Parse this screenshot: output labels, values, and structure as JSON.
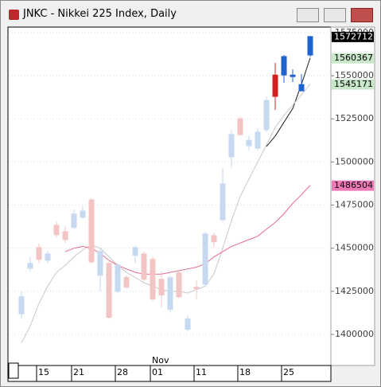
{
  "window_title": "JNKC - Nikkei 225 Index, Daily",
  "chart_data": {
    "type": "candlestick",
    "categories": [
      null,
      null,
      "15",
      null,
      null,
      null,
      "21",
      null,
      null,
      null,
      null,
      "28",
      null,
      null,
      null,
      "01",
      null,
      null,
      null,
      null,
      "11",
      null,
      null,
      null,
      null,
      "18",
      null,
      null,
      null,
      null,
      "25",
      null,
      null,
      null
    ],
    "annotations": [
      {
        "category": "01",
        "text": "Nov"
      }
    ],
    "open": [
      1412000,
      1438400,
      1450400,
      1443000,
      1463300,
      1459600,
      1462000,
      1468000,
      1478000,
      1434300,
      1441200,
      1425000,
      1433000,
      1445800,
      1446700,
      1443500,
      1432000,
      1414500,
      1435700,
      1403000,
      1427400,
      1429200,
      1457300,
      1466600,
      1503000,
      1525100,
      1509400,
      1508000,
      1518700,
      1550400,
      1550400,
      1549500,
      1541200,
      1562000
    ],
    "high": [
      1425000,
      1445000,
      1452700,
      1448500,
      1465200,
      1462900,
      1472500,
      1474400,
      1479000,
      1449500,
      1443500,
      1441200,
      1434300,
      1451800,
      1448100,
      1444900,
      1436600,
      1434300,
      1436600,
      1411300,
      1431100,
      1459600,
      1459100,
      1496500,
      1518700,
      1526400,
      1515000,
      1519600,
      1538000,
      1557400,
      1562000,
      1553700,
      1550900,
      1573000
    ],
    "low": [
      1409000,
      1436600,
      1441200,
      1441200,
      1456000,
      1453200,
      1461000,
      1467000,
      1441200,
      1425000,
      1409000,
      1423700,
      1426400,
      1441200,
      1431100,
      1419100,
      1415900,
      1412600,
      1420900,
      1402000,
      1420500,
      1427400,
      1450400,
      1465200,
      1496500,
      1515000,
      1506700,
      1506700,
      1517300,
      1530200,
      1545900,
      1546300,
      1541200,
      1561000
    ],
    "close": [
      1422000,
      1441200,
      1443500,
      1446700,
      1457800,
      1455000,
      1469800,
      1471600,
      1442100,
      1448100,
      1409900,
      1440300,
      1427400,
      1450400,
      1432000,
      1420500,
      1422800,
      1432900,
      1421800,
      1409000,
      1426500,
      1458300,
      1453700,
      1487300,
      1515900,
      1515900,
      1512600,
      1517300,
      1535700,
      1538000,
      1561100,
      1550400,
      1544900,
      1572712
    ],
    "colors": [
      "#c6d9f0",
      "#c6d9f0",
      "#f2c4c4",
      "#c6d9f0",
      "#f2c4c4",
      "#f2c4c4",
      "#c6d9f0",
      "#c6d9f0",
      "#f2c4c4",
      "#c6d9f0",
      "#f2c4c4",
      "#c6d9f0",
      "#f2c4c4",
      "#c6d9f0",
      "#f2c4c4",
      "#f2c4c4",
      "#f2c4c4",
      "#c6d9f0",
      "#f2c4c4",
      "#c6d9f0",
      "#f2c4c4",
      "#c6d9f0",
      "#f2c4c4",
      "#c6d9f0",
      "#c6d9f0",
      "#f2c4c4",
      "#c6d9f0",
      "#c6d9f0",
      "#c6d9f0",
      "#d42020",
      "#1f62d0",
      "#1f62d0",
      "#1f62d0",
      "#1f62d0"
    ],
    "lines": [
      {
        "color": "#202020",
        "values": [
          null,
          null,
          null,
          null,
          null,
          null,
          null,
          null,
          null,
          null,
          null,
          null,
          null,
          null,
          null,
          null,
          null,
          null,
          null,
          null,
          null,
          null,
          null,
          null,
          null,
          null,
          null,
          null,
          1509000,
          1515000,
          1523000,
          1531000,
          1545000,
          1560367
        ]
      },
      {
        "color": "#c8c8c8",
        "values": [
          1395000,
          1405000,
          1418000,
          1428000,
          1436000,
          1440000,
          1445000,
          1449000,
          1452000,
          1450000,
          1445000,
          1440000,
          1436000,
          1433000,
          1430000,
          1428000,
          1426000,
          1425000,
          1425000,
          1424000,
          1426000,
          1428000,
          1435000,
          1450000,
          1466000,
          1480000,
          1490000,
          1500000,
          1510000,
          1520000,
          1527000,
          1533000,
          1539000,
          1545171
        ]
      },
      {
        "color": "#e86a8a",
        "values": [
          null,
          null,
          null,
          null,
          null,
          1448000,
          1450000,
          1451000,
          1450000,
          1447000,
          1443000,
          1440000,
          1438000,
          1436000,
          1435000,
          1435000,
          1435000,
          1436000,
          1437000,
          1438000,
          1439000,
          1441000,
          1445000,
          1448000,
          1451000,
          1453000,
          1455000,
          1457000,
          1461000,
          1465000,
          1470000,
          1476000,
          1481000,
          1486504
        ]
      }
    ],
    "price_labels": [
      {
        "value": 1572712,
        "color": "#000000",
        "text_color": "#ffffff"
      },
      {
        "value": 1560367,
        "color": "#c8e6c8",
        "text_color": "#000000"
      },
      {
        "value": 1545171,
        "color": "#c8e6c8",
        "text_color": "#000000"
      },
      {
        "value": 1486504,
        "color": "#f07ab8",
        "text_color": "#000000"
      }
    ],
    "ylim": [
      1382000,
      1578200
    ],
    "yticks": [
      1400000,
      1425000,
      1450000,
      1475000,
      1500000,
      1525000,
      1550000,
      1575000
    ],
    "grid": true
  }
}
